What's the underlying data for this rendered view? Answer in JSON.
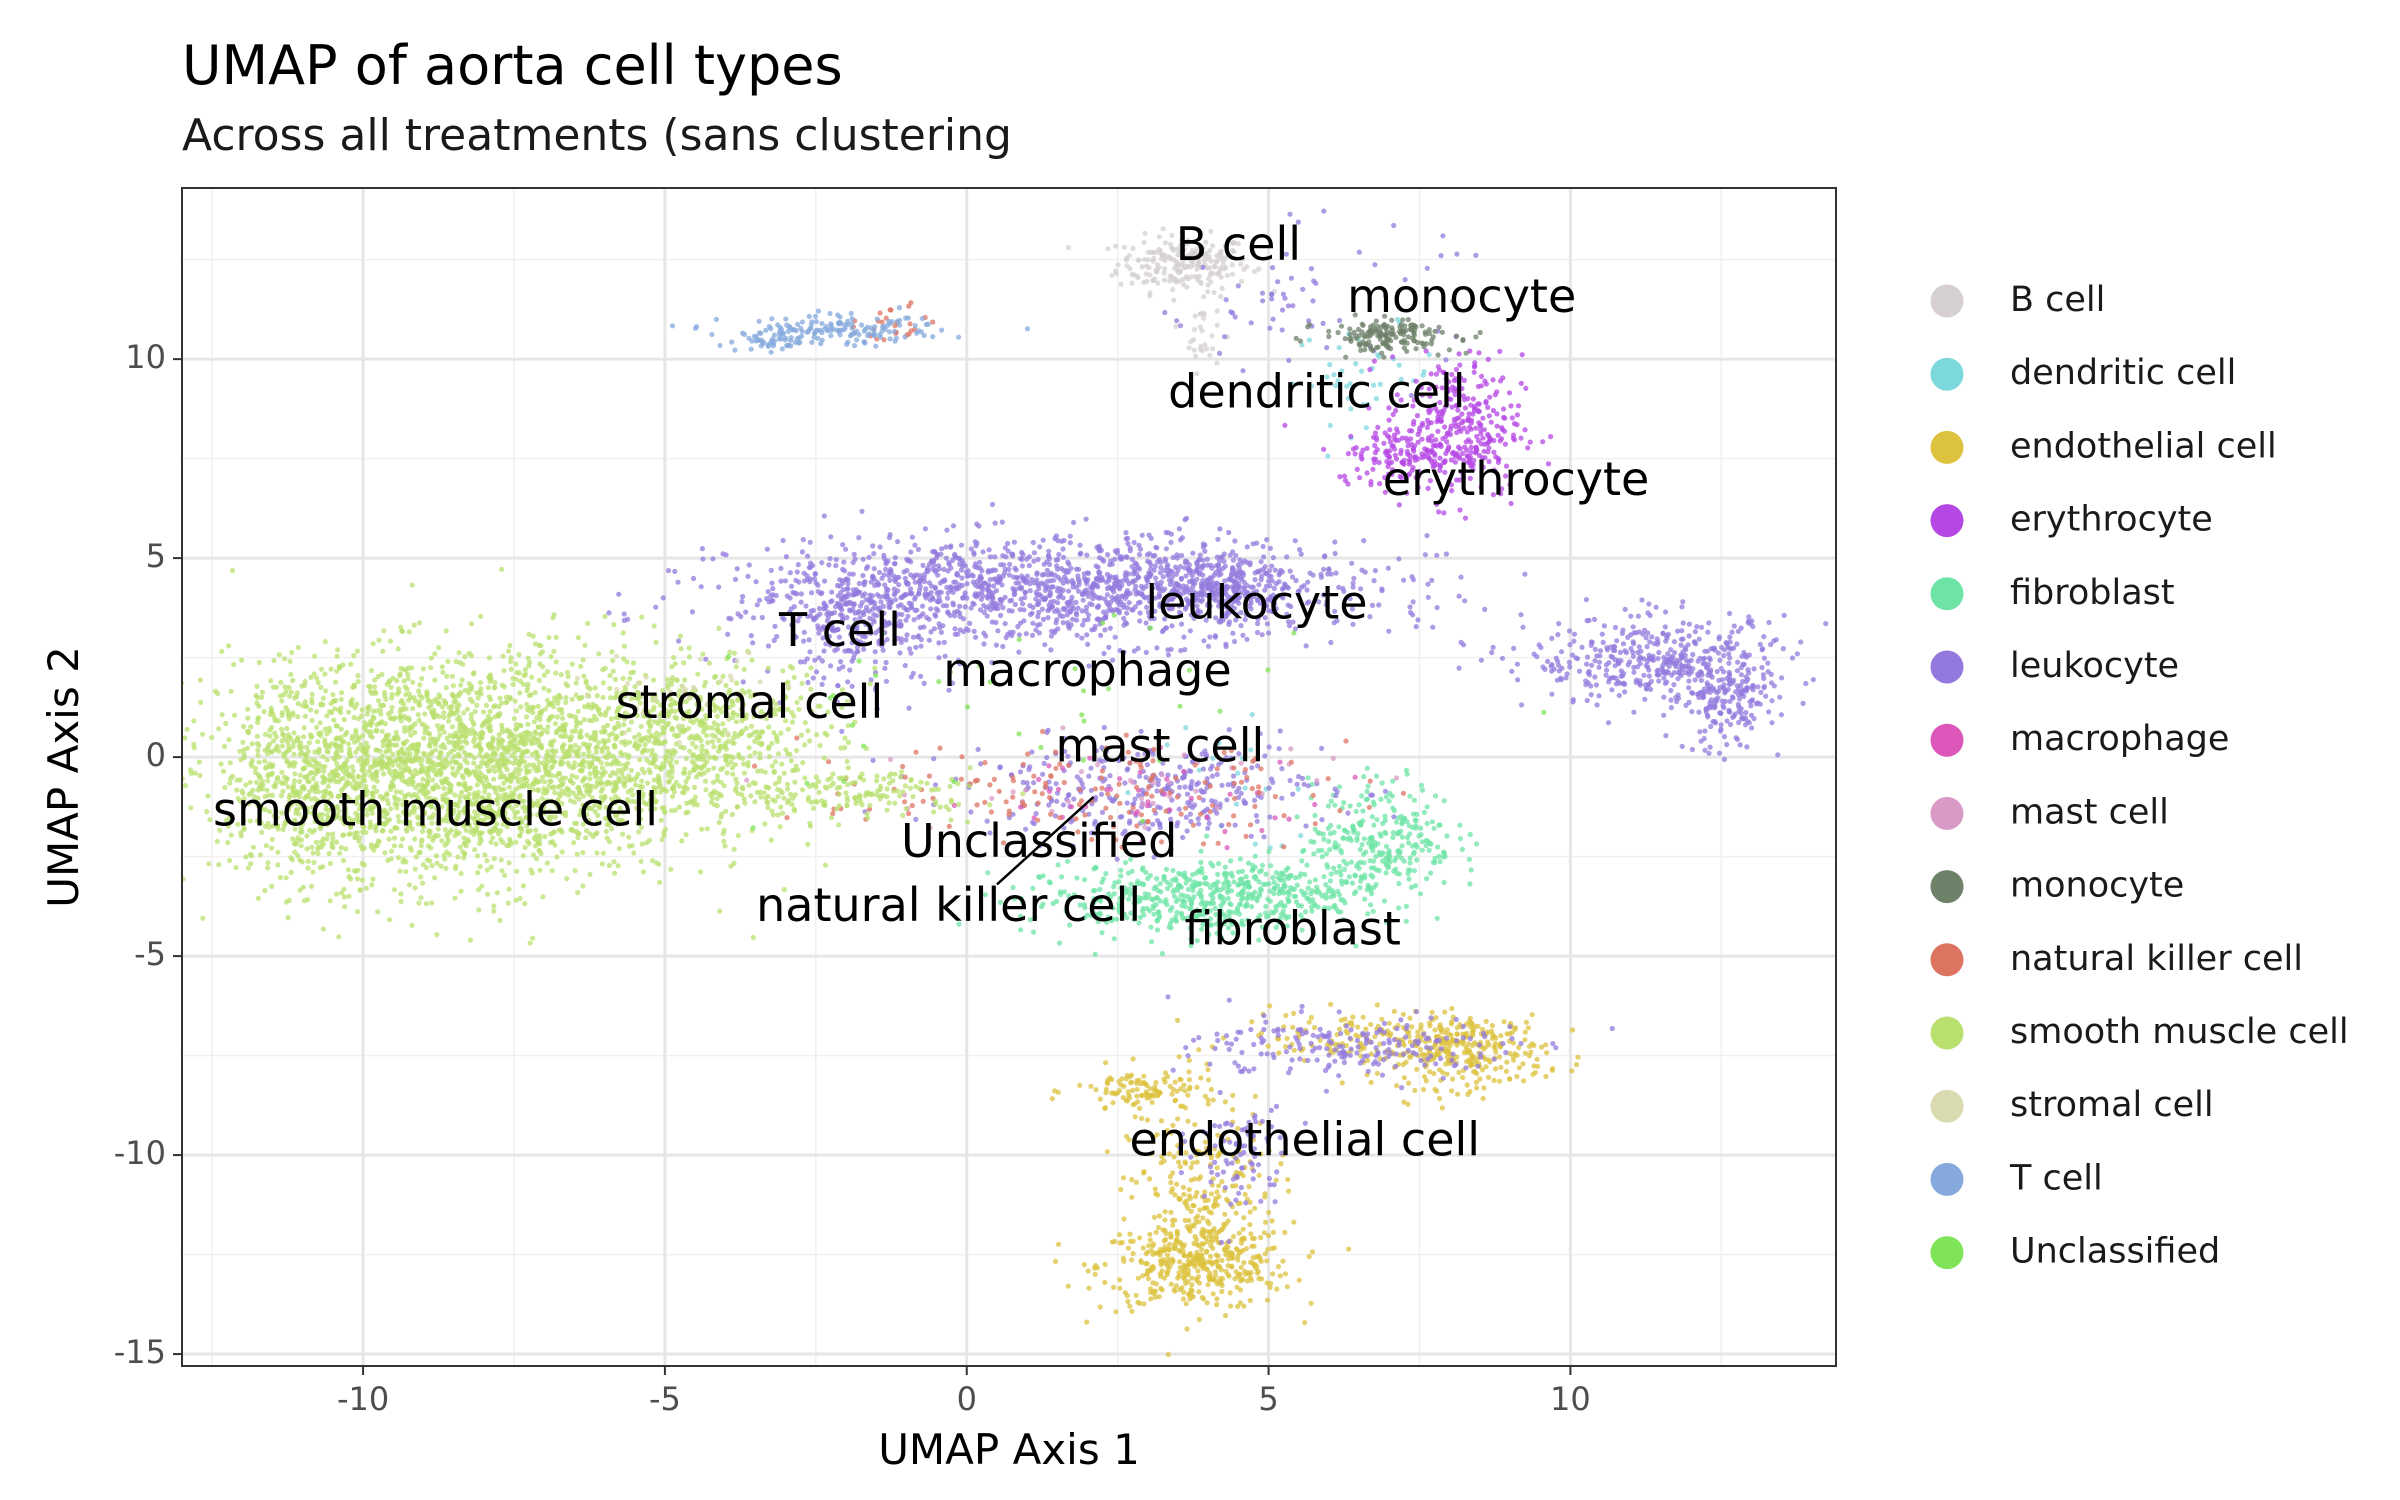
{
  "chart_data": {
    "type": "scatter",
    "title": "UMAP of aorta cell types",
    "subtitle": "Across all treatments (sans clustering",
    "xlabel": "UMAP Axis 1",
    "ylabel": "UMAP Axis 2",
    "xlim": [
      -13.0,
      14.4
    ],
    "ylim": [
      -15.3,
      14.3
    ],
    "xticks": [
      -10,
      -5,
      0,
      5,
      10
    ],
    "yticks": [
      10,
      5,
      0,
      -5,
      -10,
      -15
    ],
    "xtick_labels": [
      "-10",
      "-5",
      "0",
      "5",
      "10"
    ],
    "ytick_labels": [
      "10",
      "5",
      "0",
      "-5",
      "-10",
      "-15"
    ],
    "grid": true,
    "legend_position": "right",
    "series": [
      {
        "name": "B cell",
        "color": "#d6d0d0",
        "clusters": [
          {
            "cx": 3.6,
            "cy": 12.4,
            "sx": 0.55,
            "sy": 0.35,
            "n": 220
          },
          {
            "cx": 3.9,
            "cy": 10.7,
            "sx": 0.15,
            "sy": 0.5,
            "n": 30
          }
        ]
      },
      {
        "name": "dendritic cell",
        "color": "#7dd8dd",
        "clusters": [
          {
            "cx": 6.6,
            "cy": 9.6,
            "sx": 0.6,
            "sy": 0.6,
            "n": 40
          },
          {
            "cx": 4.4,
            "cy": -0.8,
            "sx": 1.2,
            "sy": 0.8,
            "n": 20
          }
        ]
      },
      {
        "name": "endothelial cell",
        "color": "#dcc23e",
        "clusters": [
          {
            "cx": 3.8,
            "cy": -12.8,
            "sx": 0.8,
            "sy": 0.55,
            "n": 380
          },
          {
            "cx": 3.9,
            "cy": -11.0,
            "sx": 0.6,
            "sy": 1.0,
            "n": 220
          },
          {
            "cx": 8.2,
            "cy": -7.4,
            "sx": 0.7,
            "sy": 0.45,
            "n": 300
          },
          {
            "cx": 3.0,
            "cy": -8.4,
            "sx": 0.6,
            "sy": 0.3,
            "n": 120
          },
          {
            "cx": 6.5,
            "cy": -7.0,
            "sx": 1.0,
            "sy": 0.3,
            "n": 120
          }
        ]
      },
      {
        "name": "erythrocyte",
        "color": "#b547e5",
        "clusters": [
          {
            "cx": 8.1,
            "cy": 8.3,
            "sx": 0.55,
            "sy": 0.9,
            "n": 320
          },
          {
            "cx": 7.3,
            "cy": 7.6,
            "sx": 0.6,
            "sy": 0.35,
            "n": 120
          }
        ]
      },
      {
        "name": "fibroblast",
        "color": "#6de4a5",
        "clusters": [
          {
            "cx": 3.5,
            "cy": -3.6,
            "sx": 1.3,
            "sy": 0.45,
            "n": 420
          },
          {
            "cx": 6.9,
            "cy": -2.0,
            "sx": 0.6,
            "sy": 0.7,
            "n": 260
          },
          {
            "cx": 5.2,
            "cy": -3.2,
            "sx": 0.9,
            "sy": 0.4,
            "n": 160
          }
        ]
      },
      {
        "name": "leukocyte",
        "color": "#9379de",
        "clusters": [
          {
            "cx": 1.5,
            "cy": 4.2,
            "sx": 2.6,
            "sy": 0.65,
            "n": 1400
          },
          {
            "cx": -1.8,
            "cy": 3.3,
            "sx": 0.8,
            "sy": 0.8,
            "n": 260
          },
          {
            "cx": 11.5,
            "cy": 2.4,
            "sx": 1.1,
            "sy": 0.55,
            "n": 420
          },
          {
            "cx": 12.6,
            "cy": 1.3,
            "sx": 0.35,
            "sy": 0.6,
            "n": 160
          },
          {
            "cx": 4.2,
            "cy": 4.4,
            "sx": 0.6,
            "sy": 0.4,
            "n": 180
          },
          {
            "cx": 3.0,
            "cy": -0.8,
            "sx": 1.5,
            "sy": 0.6,
            "n": 320
          },
          {
            "cx": 6.4,
            "cy": -7.3,
            "sx": 1.3,
            "sy": 0.4,
            "n": 200
          },
          {
            "cx": 5.6,
            "cy": 11.6,
            "sx": 1.2,
            "sy": 0.9,
            "n": 60
          },
          {
            "cx": 4.5,
            "cy": -10.0,
            "sx": 0.4,
            "sy": 0.9,
            "n": 80
          }
        ]
      },
      {
        "name": "macrophage",
        "color": "#dc57b9",
        "clusters": [
          {
            "cx": 2.8,
            "cy": -1.0,
            "sx": 1.8,
            "sy": 0.55,
            "n": 40
          }
        ]
      },
      {
        "name": "mast cell",
        "color": "#d99ac6",
        "clusters": [
          {
            "cx": 2.4,
            "cy": -0.8,
            "sx": 2.0,
            "sy": 0.6,
            "n": 40
          }
        ]
      },
      {
        "name": "monocyte",
        "color": "#6e826a",
        "clusters": [
          {
            "cx": 7.0,
            "cy": 10.6,
            "sx": 0.55,
            "sy": 0.2,
            "n": 160
          }
        ]
      },
      {
        "name": "natural killer cell",
        "color": "#dd7461",
        "clusters": [
          {
            "cx": 1.8,
            "cy": -0.9,
            "sx": 2.2,
            "sy": 0.6,
            "n": 160
          },
          {
            "cx": -1.2,
            "cy": 10.9,
            "sx": 0.3,
            "sy": 0.25,
            "n": 25
          }
        ]
      },
      {
        "name": "smooth muscle cell",
        "color": "#b9e06f",
        "clusters": [
          {
            "cx": -8.4,
            "cy": -0.3,
            "sx": 1.9,
            "sy": 1.4,
            "n": 2600
          },
          {
            "cx": -10.8,
            "cy": -0.5,
            "sx": 0.7,
            "sy": 1.3,
            "n": 300
          },
          {
            "cx": -4.5,
            "cy": 0.5,
            "sx": 1.2,
            "sy": 1.0,
            "n": 600
          },
          {
            "cx": -1.8,
            "cy": -0.9,
            "sx": 1.0,
            "sy": 0.3,
            "n": 150
          }
        ]
      },
      {
        "name": "stromal cell",
        "color": "#d9dab0",
        "clusters": [
          {
            "cx": -4.8,
            "cy": 1.6,
            "sx": 0.9,
            "sy": 0.5,
            "n": 40
          }
        ]
      },
      {
        "name": "T cell",
        "color": "#86a9dd",
        "clusters": [
          {
            "cx": -2.2,
            "cy": 10.7,
            "sx": 0.9,
            "sy": 0.18,
            "n": 160
          },
          {
            "cx": -3.2,
            "cy": 10.4,
            "sx": 0.3,
            "sy": 0.1,
            "n": 30
          }
        ]
      },
      {
        "name": "Unclassified",
        "color": "#7fe457",
        "clusters": [
          {
            "cx": 0.6,
            "cy": 1.0,
            "sx": 2.5,
            "sy": 1.5,
            "n": 40
          }
        ]
      }
    ],
    "annotations": [
      {
        "text": "B cell",
        "x": 4.5,
        "y": 12.8
      },
      {
        "text": "monocyte",
        "x": 8.2,
        "y": 11.5
      },
      {
        "text": "dendritic cell",
        "x": 5.8,
        "y": 9.1
      },
      {
        "text": "erythrocyte",
        "x": 9.1,
        "y": 6.9
      },
      {
        "text": "leukocyte",
        "x": 4.8,
        "y": 3.8
      },
      {
        "text": "T cell",
        "x": -2.1,
        "y": 3.1
      },
      {
        "text": "macrophage",
        "x": 2.0,
        "y": 2.1
      },
      {
        "text": "stromal cell",
        "x": -3.6,
        "y": 1.3
      },
      {
        "text": "mast cell",
        "x": 3.2,
        "y": 0.2
      },
      {
        "text": "smooth muscle cell",
        "x": -8.8,
        "y": -1.4
      },
      {
        "text": "Unclassified",
        "x": 1.2,
        "y": -2.2
      },
      {
        "text": "natural killer cell",
        "x": -0.3,
        "y": -3.8
      },
      {
        "text": "fibroblast",
        "x": 5.4,
        "y": -4.4
      },
      {
        "text": "endothelial cell",
        "x": 5.6,
        "y": -9.7
      }
    ],
    "annotation_segments": [
      {
        "x1": 0.5,
        "y1": -3.2,
        "x2": 2.1,
        "y2": -1.0
      }
    ]
  }
}
